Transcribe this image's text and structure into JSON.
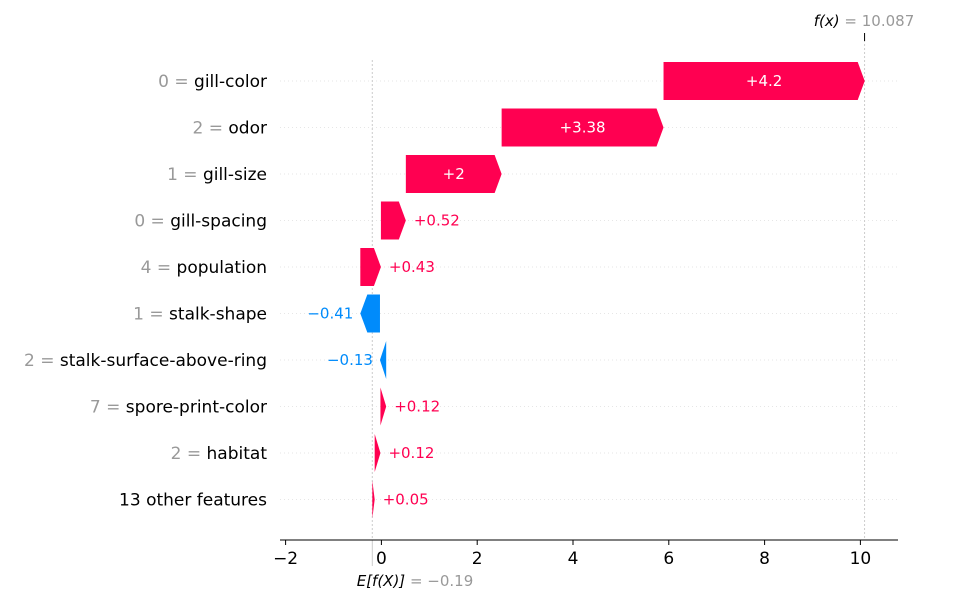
{
  "chart_data": {
    "type": "waterfall",
    "fx_label": "f(x)",
    "fx_value": "10.087",
    "fx": 10.087,
    "base_label": "E[f(X)]",
    "base_value": "−0.19",
    "base": -0.19,
    "features": [
      {
        "value": "0",
        "name": "gill-color",
        "contribution": 4.2,
        "label": "+4.2"
      },
      {
        "value": "2",
        "name": "odor",
        "contribution": 3.38,
        "label": "+3.38"
      },
      {
        "value": "1",
        "name": "gill-size",
        "contribution": 2.0,
        "label": "+2"
      },
      {
        "value": "0",
        "name": "gill-spacing",
        "contribution": 0.52,
        "label": "+0.52"
      },
      {
        "value": "4",
        "name": "population",
        "contribution": 0.43,
        "label": "+0.43"
      },
      {
        "value": "1",
        "name": "stalk-shape",
        "contribution": -0.41,
        "label": "−0.41"
      },
      {
        "value": "2",
        "name": "stalk-surface-above-ring",
        "contribution": -0.13,
        "label": "−0.13"
      },
      {
        "value": "7",
        "name": "spore-print-color",
        "contribution": 0.12,
        "label": "+0.12"
      },
      {
        "value": "2",
        "name": "habitat",
        "contribution": 0.12,
        "label": "+0.12"
      },
      {
        "value": "",
        "name": "13 other features",
        "contribution": 0.05,
        "label": "+0.05"
      }
    ],
    "x_ticks": [
      {
        "v": -2,
        "label": "−2"
      },
      {
        "v": 0,
        "label": "0"
      },
      {
        "v": 2,
        "label": "2"
      },
      {
        "v": 4,
        "label": "4"
      },
      {
        "v": 6,
        "label": "6"
      },
      {
        "v": 8,
        "label": "8"
      },
      {
        "v": 10,
        "label": "10"
      }
    ],
    "xlim": [
      -2.2,
      10.8
    ],
    "colors": {
      "positive": "#ff0051",
      "negative": "#008bfb",
      "muted": "#999999"
    }
  }
}
